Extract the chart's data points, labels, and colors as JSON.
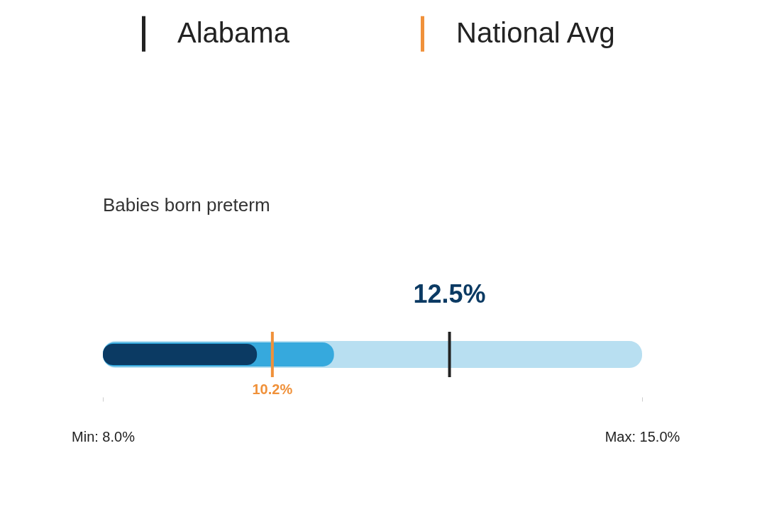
{
  "chart_data": {
    "type": "bar",
    "orientation": "horizontal",
    "title": "Babies born preterm",
    "categories": [
      null
    ],
    "series": [
      {
        "color": "#b8dff1",
        "values": [
          15.0
        ]
      },
      {
        "color": "#36a9dd",
        "values": [
          11.0
        ]
      },
      {
        "color": "#0b3a63",
        "values": [
          10.0
        ]
      }
    ],
    "xlim": [
      8.0,
      15.0
    ],
    "xticks": [
      {
        "value": 8.0,
        "label": "Min: 8.0%"
      },
      {
        "value": 15.0,
        "label": "Max: 15.0%"
      }
    ],
    "ref_lines": [
      {
        "axis": "x",
        "value": 12.5,
        "label": "12.5%",
        "color": "#222222"
      },
      {
        "axis": "x",
        "value": 10.2,
        "label": "10.2%",
        "color": "#f0913a"
      }
    ],
    "annotations": [
      "Alabama",
      "National Avg"
    ],
    "legend": "top"
  }
}
